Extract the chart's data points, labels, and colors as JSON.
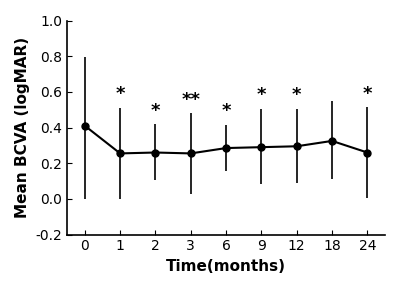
{
  "x_indices": [
    0,
    1,
    2,
    3,
    4,
    5,
    6,
    7,
    8
  ],
  "x_labels": [
    "0",
    "1",
    "2",
    "3",
    "6",
    "9",
    "12",
    "18",
    "24"
  ],
  "y_values": [
    0.41,
    0.255,
    0.26,
    0.255,
    0.285,
    0.29,
    0.295,
    0.325,
    0.26
  ],
  "y_err_upper": [
    0.385,
    0.255,
    0.16,
    0.225,
    0.13,
    0.215,
    0.21,
    0.225,
    0.255
  ],
  "y_err_lower": [
    0.41,
    0.255,
    0.155,
    0.225,
    0.13,
    0.205,
    0.205,
    0.215,
    0.255
  ],
  "annotations": [
    "",
    "*",
    "*",
    "**",
    "*",
    "*",
    "*",
    "",
    "*"
  ],
  "xlabel": "Time(months)",
  "ylabel": "Mean BCVA (logMAR)",
  "ylim": [
    -0.2,
    1.0
  ],
  "yticks": [
    -0.2,
    0.0,
    0.2,
    0.4,
    0.6,
    0.8,
    1.0
  ],
  "line_color": "#000000",
  "marker_color": "#000000",
  "background_color": "#ffffff",
  "label_fontsize": 11,
  "tick_fontsize": 10,
  "annotation_fontsize": 13
}
